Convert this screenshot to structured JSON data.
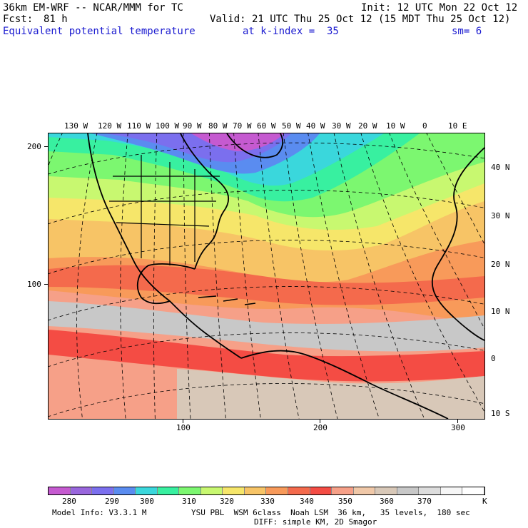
{
  "header": {
    "model_title": "36km EM-WRF -- NCAR/MMM for TC",
    "init_label": "Init: 12 UTC Mon 22 Oct 12",
    "fcst_label": "Fcst:",
    "fcst_hours": "81 h",
    "valid_label": "Valid: 21 UTC Thu 25 Oct 12 (15 MDT Thu 25 Oct 12)",
    "field_name": "Equivalent potential temperature",
    "level_label": "at k-index =  35",
    "smooth_label": "sm= 6"
  },
  "map": {
    "top_lon_labels": [
      "130 W",
      "120 W",
      "110 W",
      "100 W",
      "90 W",
      "80 W",
      "70 W",
      "60 W",
      "50 W",
      "40 W",
      "30 W",
      "20 W",
      "10 W",
      "0",
      "10 E"
    ],
    "right_lat_labels": [
      "40 N",
      "30 N",
      "20 N",
      "10 N",
      "0",
      "10 S"
    ],
    "left_grid_labels": [
      "200",
      "100"
    ],
    "bottom_grid_labels": [
      "100",
      "200",
      "300"
    ]
  },
  "colorbar": {
    "colors": [
      "#c55ad0",
      "#9966dd",
      "#7b6fee",
      "#5a8cf0",
      "#3ad7dc",
      "#38f0a0",
      "#7cf770",
      "#c8f870",
      "#f6e66a",
      "#f7c466",
      "#f89a5a",
      "#f46a4c",
      "#f44c44",
      "#f6a088",
      "#f0c8a8",
      "#d8c8b8",
      "#c8c8c8",
      "#dddddd",
      "#f6f6f6",
      "#ffffff"
    ],
    "labels": [
      "280",
      "290",
      "300",
      "310",
      "320",
      "330",
      "340",
      "350",
      "360",
      "370"
    ],
    "unit": "K"
  },
  "footer": {
    "model_info": "Model Info: V3.3.1 M",
    "physics": "YSU PBL  WSM 6class  Noah LSM  36 km,   35 levels,  180 sec",
    "diffusion": "DIFF: simple KM, 2D Smagor"
  }
}
